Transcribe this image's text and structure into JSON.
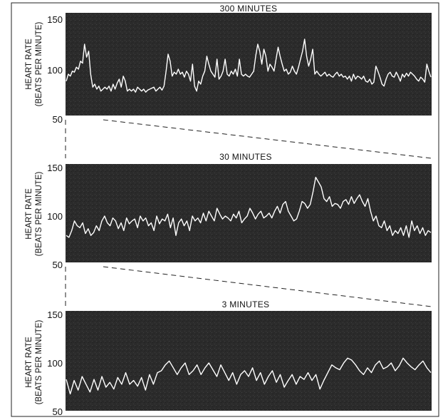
{
  "colors": {
    "background": "#ffffff",
    "plot_background": "#2b2b2b",
    "trace": "#ffffff",
    "text": "#111111"
  },
  "chart_data": [
    {
      "type": "line",
      "title": "300 MINUTES",
      "ylabel_line1": "HEART RATE",
      "ylabel_line2": "(BEATS PER MINUTE)",
      "ylim": [
        50,
        150
      ],
      "yticks": [
        "150",
        "100",
        "50"
      ],
      "grid": false,
      "values": [
        88,
        95,
        93,
        98,
        97,
        102,
        100,
        108,
        106,
        125,
        112,
        118,
        95,
        82,
        85,
        80,
        83,
        78,
        80,
        82,
        80,
        83,
        78,
        85,
        80,
        86,
        90,
        82,
        93,
        88,
        78,
        80,
        78,
        80,
        77,
        82,
        80,
        78,
        80,
        77,
        79,
        80,
        81,
        82,
        78,
        80,
        82,
        79,
        83,
        98,
        115,
        108,
        93,
        97,
        95,
        100,
        95,
        97,
        92,
        98,
        95,
        88,
        105,
        83,
        78,
        88,
        85,
        93,
        98,
        113,
        105,
        98,
        95,
        92,
        110,
        90,
        93,
        98,
        110,
        95,
        93,
        98,
        95,
        100,
        93,
        110,
        95,
        93,
        95,
        93,
        92,
        95,
        98,
        113,
        125,
        118,
        105,
        120,
        113,
        98,
        105,
        102,
        98,
        110,
        122,
        113,
        105,
        98,
        100,
        95,
        97,
        103,
        98,
        95,
        102,
        110,
        118,
        130,
        113,
        103,
        110,
        120,
        95,
        98,
        95,
        93,
        95,
        97,
        93,
        95,
        93,
        92,
        95,
        97,
        93,
        95,
        92,
        93,
        90,
        93,
        88,
        95,
        90,
        93,
        92,
        90,
        93,
        88,
        87,
        90,
        85,
        87,
        103,
        98,
        92,
        85,
        83,
        90,
        95,
        97,
        93,
        92,
        97,
        93,
        88,
        95,
        92,
        96,
        93,
        97,
        95,
        93,
        90,
        88,
        92,
        90,
        87,
        105,
        98,
        92
      ]
    },
    {
      "type": "line",
      "title": "30 MINUTES",
      "ylabel_line1": "HEART RATE",
      "ylabel_line2": "(BEATS PER MINUTE)",
      "ylim": [
        50,
        150
      ],
      "yticks": [
        "150",
        "100",
        "50"
      ],
      "grid": false,
      "values": [
        80,
        78,
        85,
        95,
        90,
        88,
        93,
        82,
        87,
        80,
        83,
        90,
        85,
        95,
        100,
        93,
        90,
        98,
        95,
        87,
        93,
        85,
        98,
        92,
        95,
        97,
        88,
        100,
        95,
        98,
        90,
        93,
        85,
        100,
        92,
        97,
        95,
        102,
        88,
        98,
        80,
        93,
        97,
        90,
        95,
        85,
        100,
        95,
        98,
        93,
        103,
        95,
        105,
        100,
        95,
        108,
        102,
        97,
        100,
        98,
        95,
        102,
        98,
        105,
        93,
        97,
        100,
        108,
        103,
        97,
        102,
        105,
        98,
        100,
        103,
        98,
        105,
        110,
        103,
        112,
        115,
        105,
        100,
        95,
        97,
        105,
        115,
        113,
        108,
        112,
        125,
        140,
        135,
        130,
        118,
        115,
        120,
        110,
        113,
        112,
        108,
        115,
        117,
        112,
        120,
        113,
        118,
        122,
        115,
        110,
        118,
        105,
        95,
        100,
        90,
        88,
        95,
        85,
        90,
        80,
        85,
        82,
        88,
        80,
        90,
        78,
        95,
        85,
        90,
        82,
        88,
        80,
        85,
        83
      ]
    },
    {
      "type": "line",
      "title": "3 MINUTES",
      "ylabel_line1": "HEART RATE",
      "ylabel_line2": "(BEATS PER MINUTE)",
      "ylim": [
        50,
        150
      ],
      "yticks": [
        "150",
        "100",
        "50"
      ],
      "grid": false,
      "values": [
        83,
        68,
        82,
        72,
        86,
        78,
        70,
        83,
        72,
        86,
        75,
        80,
        73,
        85,
        78,
        90,
        78,
        82,
        76,
        85,
        72,
        88,
        78,
        90,
        92,
        98,
        102,
        95,
        88,
        95,
        100,
        88,
        92,
        98,
        88,
        95,
        100,
        93,
        86,
        98,
        90,
        82,
        90,
        78,
        88,
        92,
        86,
        95,
        82,
        90,
        78,
        86,
        92,
        80,
        88,
        75,
        82,
        88,
        78,
        86,
        83,
        90,
        82,
        88,
        73,
        82,
        90,
        98,
        95,
        93,
        100,
        105,
        103,
        98,
        92,
        88,
        95,
        90,
        98,
        102,
        94,
        96,
        100,
        92,
        97,
        105,
        100,
        96,
        93,
        98,
        102,
        95,
        90
      ]
    }
  ]
}
